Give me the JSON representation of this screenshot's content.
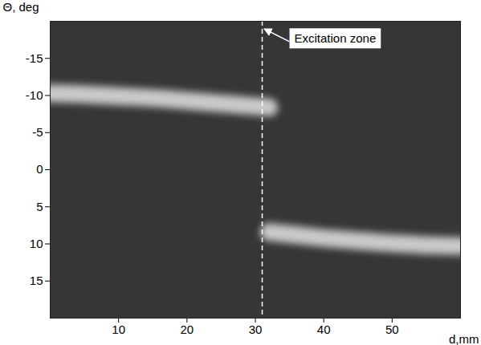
{
  "chart_data": {
    "type": "line",
    "x_label": "d,mm",
    "y_label": "Θ, deg",
    "x": [
      0,
      4,
      8,
      12,
      16,
      20,
      24,
      28,
      32,
      36,
      40,
      44,
      48,
      52,
      56,
      60
    ],
    "series": [
      {
        "color": "#e4e4e4",
        "values": [
          -10.3,
          -10.2,
          -10.0,
          -9.8,
          -9.6,
          -9.3,
          -9.0,
          -8.7,
          -8.4,
          null,
          null,
          null,
          null,
          null,
          null,
          null
        ]
      },
      {
        "color": "#e4e4e4",
        "values": [
          null,
          null,
          null,
          null,
          null,
          null,
          null,
          null,
          8.4,
          8.8,
          9.2,
          9.5,
          9.8,
          10.0,
          10.2,
          10.3
        ]
      }
    ],
    "xlim": [
      0,
      60
    ],
    "xticks": [
      10,
      20,
      30,
      40,
      50
    ],
    "ylim": [
      20,
      -20
    ],
    "yticks": [
      -15,
      -10,
      -5,
      0,
      5,
      10,
      15
    ],
    "grid": false,
    "annotations": [
      {
        "text": "Excitation zone",
        "x": 31,
        "line_style": "dashed"
      }
    ]
  }
}
